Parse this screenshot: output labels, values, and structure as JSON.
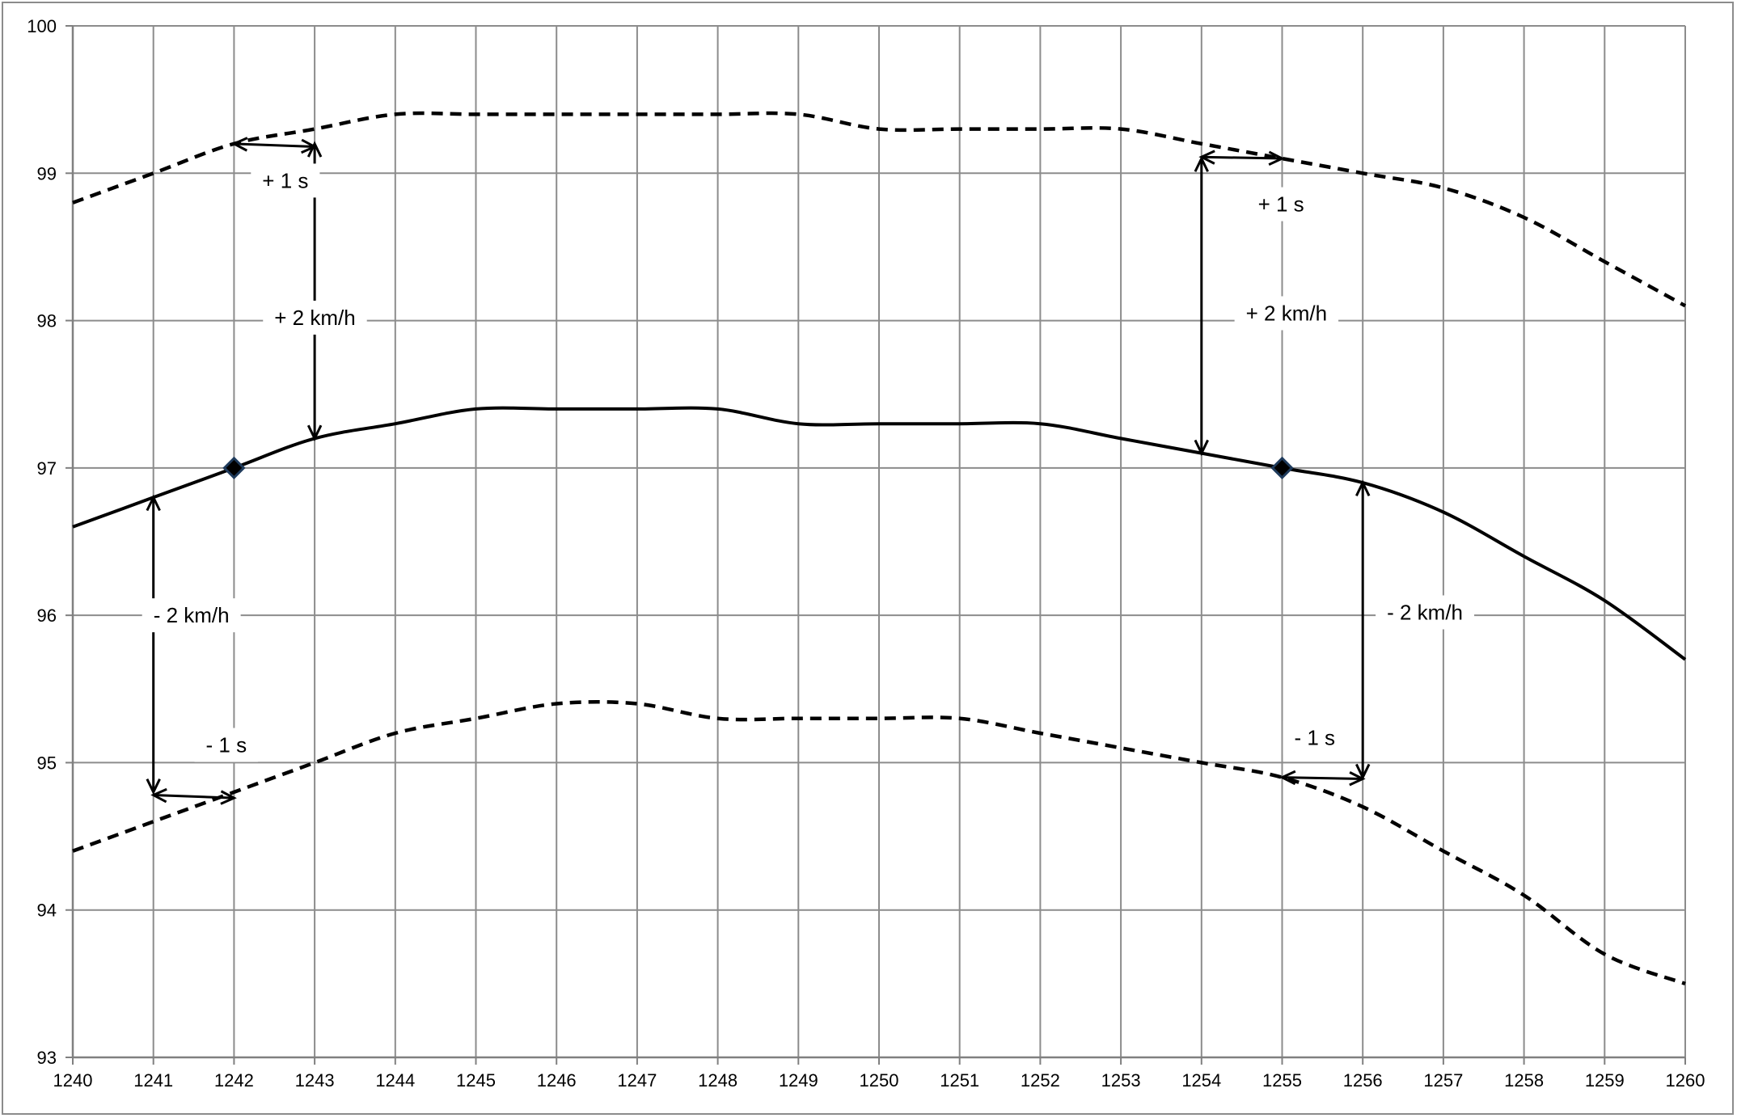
{
  "chart_data": {
    "type": "line",
    "title": "",
    "xlabel": "",
    "ylabel": "",
    "xlim": [
      1240,
      1260
    ],
    "ylim": [
      93,
      100
    ],
    "grid": true,
    "x_ticks": [
      1240,
      1241,
      1242,
      1243,
      1244,
      1245,
      1246,
      1247,
      1248,
      1249,
      1250,
      1251,
      1252,
      1253,
      1254,
      1255,
      1256,
      1257,
      1258,
      1259,
      1260
    ],
    "y_ticks": [
      93,
      94,
      95,
      96,
      97,
      98,
      99,
      100
    ],
    "series": [
      {
        "style": "solid",
        "color": "#000000",
        "x": [
          1240,
          1241,
          1242,
          1243,
          1244,
          1245,
          1246,
          1247,
          1248,
          1249,
          1250,
          1251,
          1252,
          1253,
          1254,
          1255,
          1256,
          1257,
          1258,
          1259,
          1260
        ],
        "values": [
          96.6,
          96.8,
          97.0,
          97.2,
          97.3,
          97.4,
          97.4,
          97.4,
          97.4,
          97.3,
          97.3,
          97.3,
          97.3,
          97.2,
          97.1,
          97.0,
          96.9,
          96.7,
          96.4,
          96.1,
          95.7
        ]
      },
      {
        "style": "dashed",
        "color": "#000000",
        "x": [
          1240,
          1241,
          1242,
          1243,
          1244,
          1245,
          1246,
          1247,
          1248,
          1249,
          1250,
          1251,
          1252,
          1253,
          1254,
          1255,
          1256,
          1257,
          1258,
          1259,
          1260
        ],
        "values": [
          98.8,
          99.0,
          99.2,
          99.3,
          99.4,
          99.4,
          99.4,
          99.4,
          99.4,
          99.4,
          99.3,
          99.3,
          99.3,
          99.3,
          99.2,
          99.1,
          99.0,
          98.9,
          98.7,
          98.4,
          98.1
        ]
      },
      {
        "style": "dashed",
        "color": "#000000",
        "x": [
          1240,
          1241,
          1242,
          1243,
          1244,
          1245,
          1246,
          1247,
          1248,
          1249,
          1250,
          1251,
          1252,
          1253,
          1254,
          1255,
          1256,
          1257,
          1258,
          1259,
          1260
        ],
        "values": [
          94.4,
          94.6,
          94.8,
          95.0,
          95.2,
          95.3,
          95.4,
          95.4,
          95.3,
          95.3,
          95.3,
          95.3,
          95.2,
          95.1,
          95.0,
          94.9,
          94.7,
          94.4,
          94.1,
          93.7,
          93.5
        ]
      }
    ],
    "markers": [
      {
        "x": 1242,
        "y": 97.0,
        "shape": "diamond",
        "color": "#1f3b5c"
      },
      {
        "x": 1255,
        "y": 97.0,
        "shape": "diamond",
        "color": "#1f3b5c"
      }
    ],
    "annotations": {
      "items": [
        {
          "text": "+ 1 s",
          "x": 1242.35,
          "y": 98.95
        },
        {
          "text": "+ 2 km/h",
          "x": 1242.5,
          "y": 98.02
        },
        {
          "text": "- 2 km/h",
          "x": 1241.0,
          "y": 96.0
        },
        {
          "text": "- 1 s",
          "x": 1241.65,
          "y": 95.12
        },
        {
          "text": "+ 1 s",
          "x": 1254.7,
          "y": 98.79
        },
        {
          "text": "+ 2 km/h",
          "x": 1254.55,
          "y": 98.05
        },
        {
          "text": "- 2 km/h",
          "x": 1256.3,
          "y": 96.02
        },
        {
          "text": "- 1 s",
          "x": 1255.15,
          "y": 95.17
        }
      ],
      "arrows": [
        {
          "x1": 1242.0,
          "y1": 99.2,
          "x2": 1243.0,
          "y2": 99.18
        },
        {
          "x1": 1243.0,
          "y1": 99.2,
          "x2": 1243.0,
          "y2": 97.2
        },
        {
          "x1": 1241.0,
          "y1": 96.8,
          "x2": 1241.0,
          "y2": 94.8
        },
        {
          "x1": 1241.0,
          "y1": 94.78,
          "x2": 1242.0,
          "y2": 94.76
        },
        {
          "x1": 1254.0,
          "y1": 99.11,
          "x2": 1255.0,
          "y2": 99.1
        },
        {
          "x1": 1254.0,
          "y1": 99.1,
          "x2": 1254.0,
          "y2": 97.1
        },
        {
          "x1": 1256.0,
          "y1": 96.9,
          "x2": 1256.0,
          "y2": 94.9
        },
        {
          "x1": 1255.0,
          "y1": 94.9,
          "x2": 1256.0,
          "y2": 94.89
        }
      ]
    }
  }
}
